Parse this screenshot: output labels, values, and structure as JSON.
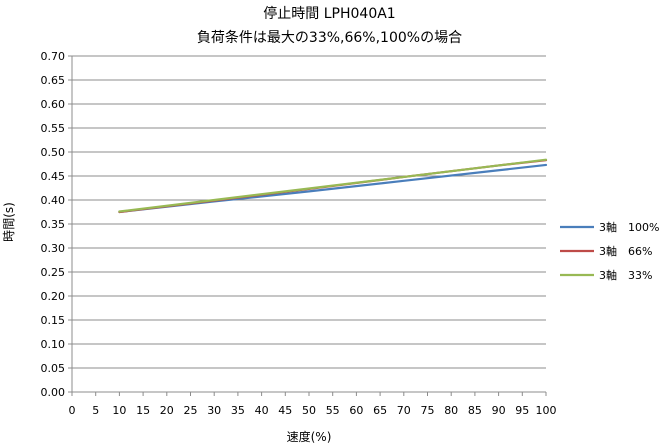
{
  "chart_data": {
    "type": "line",
    "title": "停止時間 LPH040A1",
    "subtitle": "負荷条件は最大の33%,66%,100%の場合",
    "xlabel": "速度(%)",
    "ylabel": "時間(s)",
    "xlim": [
      0,
      100
    ],
    "ylim": [
      0,
      0.7
    ],
    "x_ticks": [
      "0",
      "5",
      "10",
      "15",
      "20",
      "25",
      "30",
      "35",
      "40",
      "45",
      "50",
      "55",
      "60",
      "65",
      "70",
      "75",
      "80",
      "85",
      "90",
      "95",
      "100"
    ],
    "y_ticks": [
      "0.00",
      "0.05",
      "0.10",
      "0.15",
      "0.20",
      "0.25",
      "0.30",
      "0.35",
      "0.40",
      "0.45",
      "0.50",
      "0.55",
      "0.60",
      "0.65",
      "0.70"
    ],
    "grid": "horizontal",
    "legend_position": "right",
    "series": [
      {
        "name": "3軸　100%",
        "color": "#4a7ebb",
        "x": [
          10,
          30,
          50,
          70,
          90,
          100
        ],
        "y": [
          0.375,
          0.397,
          0.418,
          0.44,
          0.462,
          0.473
        ]
      },
      {
        "name": "3軸　66%",
        "color": "#be4b48",
        "x": [
          10,
          30,
          50,
          70,
          90,
          100
        ],
        "y": [
          0.375,
          0.399,
          0.423,
          0.448,
          0.472,
          0.483
        ]
      },
      {
        "name": "3軸　33%",
        "color": "#98b954",
        "x": [
          10,
          30,
          50,
          70,
          90,
          100
        ],
        "y": [
          0.376,
          0.4,
          0.424,
          0.448,
          0.472,
          0.484
        ]
      }
    ]
  }
}
